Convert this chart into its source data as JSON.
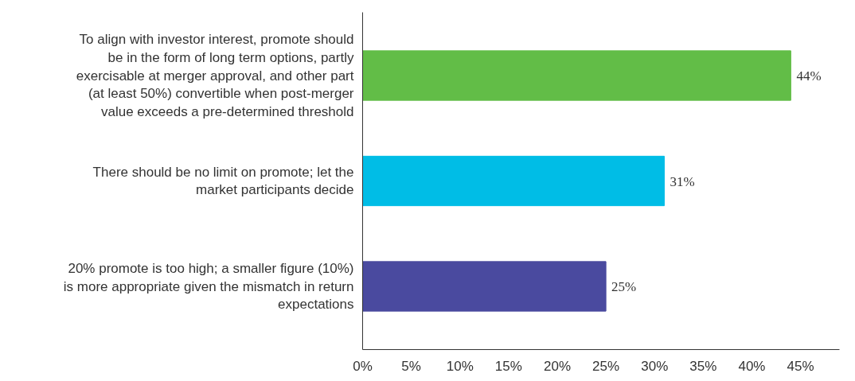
{
  "chart_data": {
    "type": "bar",
    "orientation": "horizontal",
    "categories": [
      "To align with investor interest, promote should be in the form of long term options, partly exercisable at merger approval, and other part (at least 50%) convertible when post-merger value exceeds a pre-determined threshold",
      "There should be no limit on promote; let the market participants decide",
      "20% promote is too high; a smaller figure (10%) is more appropriate given the mismatch in return expectations"
    ],
    "values": [
      44,
      31,
      25
    ],
    "colors": [
      "#62bd47",
      "#00bde6",
      "#4a4a9f"
    ],
    "value_labels": [
      "44%",
      "31%",
      "25%"
    ],
    "xlim": [
      0,
      49
    ],
    "xticks": [
      {
        "value": 0,
        "label": "0%"
      },
      {
        "value": 5,
        "label": "5%"
      },
      {
        "value": 10,
        "label": "10%"
      },
      {
        "value": 15,
        "label": "15%"
      },
      {
        "value": 20,
        "label": "20%"
      },
      {
        "value": 25,
        "label": "25%"
      },
      {
        "value": 30,
        "label": "30%"
      },
      {
        "value": 35,
        "label": "35%"
      },
      {
        "value": 40,
        "label": "40%"
      },
      {
        "value": 45,
        "label": "45%"
      }
    ],
    "grid": false
  }
}
